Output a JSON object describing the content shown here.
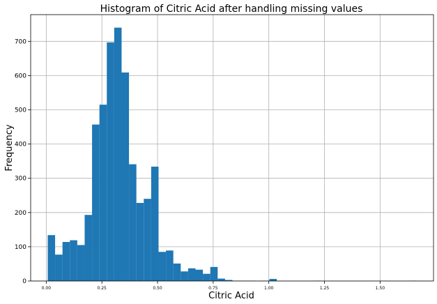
{
  "chart_data": {
    "type": "bar",
    "title": "Histogram of Citric Acid after handling missing values",
    "xlabel": "Citric Acid",
    "ylabel": "Frequency",
    "xlim": [
      -0.07,
      1.74
    ],
    "ylim": [
      0,
      778
    ],
    "grid": true,
    "color": "#1f77b4",
    "bin_width": 0.0332,
    "xticks": [
      {
        "value": 0.0,
        "label": "0.00"
      },
      {
        "value": 0.25,
        "label": "0.25"
      },
      {
        "value": 0.5,
        "label": "0.50"
      },
      {
        "value": 0.75,
        "label": "0.75"
      },
      {
        "value": 1.0,
        "label": "1.00"
      },
      {
        "value": 1.25,
        "label": "1.25"
      },
      {
        "value": 1.5,
        "label": "1.50"
      }
    ],
    "yticks": [
      {
        "value": 0,
        "label": "0"
      },
      {
        "value": 100,
        "label": "100"
      },
      {
        "value": 200,
        "label": "200"
      },
      {
        "value": 300,
        "label": "300"
      },
      {
        "value": 400,
        "label": "400"
      },
      {
        "value": 500,
        "label": "500"
      },
      {
        "value": 600,
        "label": "600"
      },
      {
        "value": 700,
        "label": "700"
      }
    ],
    "bins": [
      {
        "x": 0.0066,
        "count": 134
      },
      {
        "x": 0.0398,
        "count": 77
      },
      {
        "x": 0.073,
        "count": 114
      },
      {
        "x": 0.1062,
        "count": 119
      },
      {
        "x": 0.1394,
        "count": 105
      },
      {
        "x": 0.1726,
        "count": 193
      },
      {
        "x": 0.2058,
        "count": 457
      },
      {
        "x": 0.239,
        "count": 515
      },
      {
        "x": 0.2722,
        "count": 697
      },
      {
        "x": 0.3054,
        "count": 740
      },
      {
        "x": 0.3386,
        "count": 609
      },
      {
        "x": 0.3718,
        "count": 341
      },
      {
        "x": 0.405,
        "count": 228
      },
      {
        "x": 0.4382,
        "count": 240
      },
      {
        "x": 0.4714,
        "count": 334
      },
      {
        "x": 0.5046,
        "count": 85
      },
      {
        "x": 0.5378,
        "count": 89
      },
      {
        "x": 0.571,
        "count": 51
      },
      {
        "x": 0.6042,
        "count": 28
      },
      {
        "x": 0.6374,
        "count": 37
      },
      {
        "x": 0.6706,
        "count": 33
      },
      {
        "x": 0.7038,
        "count": 21
      },
      {
        "x": 0.737,
        "count": 41
      },
      {
        "x": 0.7702,
        "count": 7
      },
      {
        "x": 0.8034,
        "count": 3
      },
      {
        "x": 0.8366,
        "count": 1
      },
      {
        "x": 0.8698,
        "count": 1
      },
      {
        "x": 0.903,
        "count": 1
      },
      {
        "x": 0.9694,
        "count": 1
      },
      {
        "x": 1.0026,
        "count": 6
      },
      {
        "x": 1.2018,
        "count": 1
      },
      {
        "x": 1.6334,
        "count": 1
      }
    ]
  }
}
